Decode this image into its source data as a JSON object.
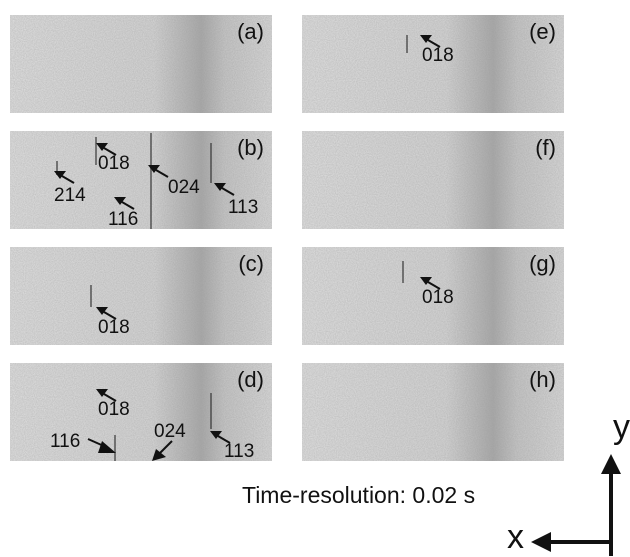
{
  "panels": [
    {
      "label": "(a)",
      "reflections": []
    },
    {
      "label": "(b)",
      "reflections": [
        "018",
        "214",
        "024",
        "116",
        "113"
      ]
    },
    {
      "label": "(c)",
      "reflections": [
        "018"
      ]
    },
    {
      "label": "(d)",
      "reflections": [
        "018",
        "116",
        "024",
        "113"
      ]
    },
    {
      "label": "(e)",
      "reflections": [
        "018"
      ]
    },
    {
      "label": "(f)",
      "reflections": []
    },
    {
      "label": "(g)",
      "reflections": [
        "018"
      ]
    },
    {
      "label": "(h)",
      "reflections": []
    }
  ],
  "caption": "Time-resolution: 0.02 s",
  "axes": {
    "x_label": "x",
    "y_label": "y"
  },
  "colors": {
    "panel_bg": "#d8d8d8",
    "band": "#9a9a9a",
    "arrow": "#111111"
  }
}
